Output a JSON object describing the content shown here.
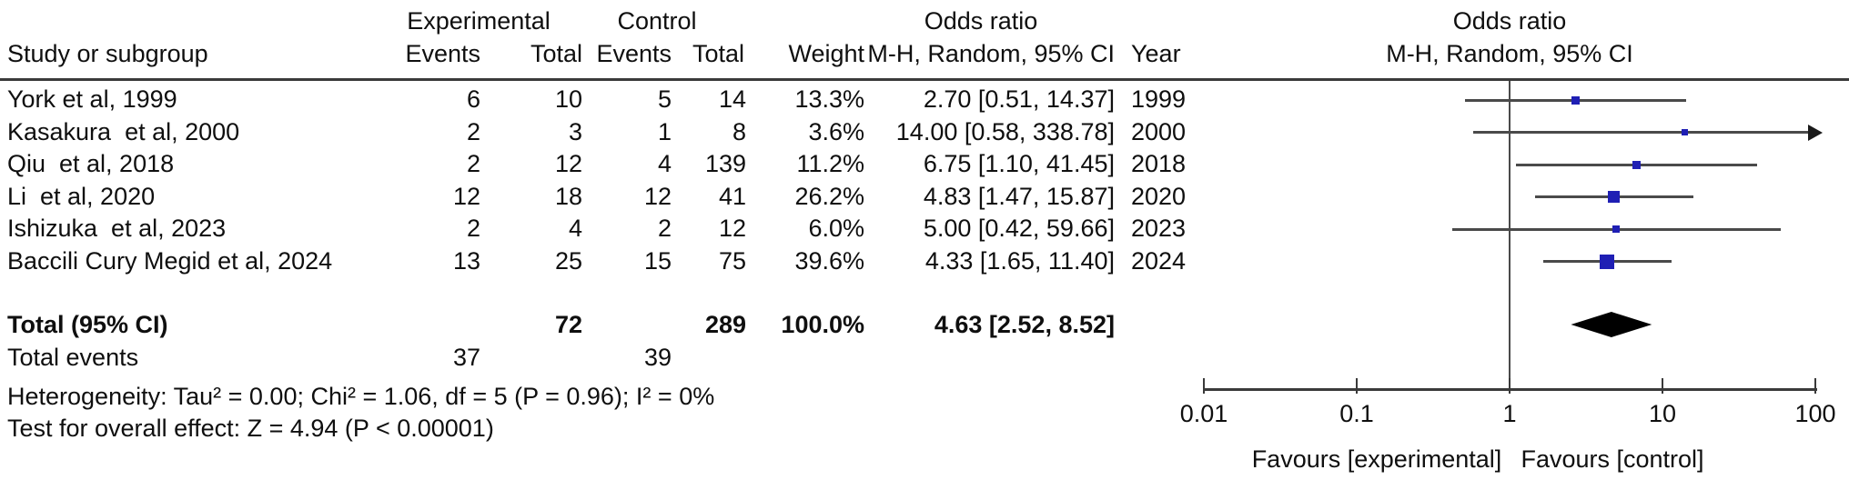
{
  "colors": {
    "marker_blue": "#1f1fb4",
    "ci_line_gray": "#4a4a4a",
    "diamond_black": "#000000",
    "text": "#0f0f0f"
  },
  "header": {
    "group_experimental": "Experimental",
    "group_control": "Control",
    "study_col": "Study or subgroup",
    "events_col": "Events",
    "total_col": "Total",
    "weight_col": "Weight",
    "or_title": "Odds ratio",
    "or_subtitle": "M-H, Random, 95% CI",
    "plot_title": "Odds ratio",
    "plot_subtitle": "M-H, Random, 95% CI",
    "year_col": "Year"
  },
  "chart_data": {
    "type": "forest",
    "scale": "log10",
    "effect_measure": "Odds ratio (M-H, Random, 95% CI)",
    "null_line": 1,
    "axis_ticks": [
      0.01,
      0.1,
      1,
      10,
      100
    ],
    "axis_tick_labels": [
      "0.01",
      "0.1",
      "1",
      "10",
      "100"
    ],
    "axis_clip_max": 100,
    "favours_left": "Favours [experimental]",
    "favours_right": "Favours [control]",
    "studies": [
      {
        "name": "York et al, 1999",
        "exp_events": "6",
        "exp_total": "10",
        "ctrl_events": "5",
        "ctrl_total": "14",
        "weight_pct": 13.3,
        "weight_text": "13.3%",
        "or": 2.7,
        "ci_low": 0.51,
        "ci_high": 14.37,
        "or_text": "2.70 [0.51, 14.37]",
        "year": "1999"
      },
      {
        "name": "Kasakura  et al, 2000",
        "exp_events": "2",
        "exp_total": "3",
        "ctrl_events": "1",
        "ctrl_total": "8",
        "weight_pct": 3.6,
        "weight_text": "3.6%",
        "or": 14.0,
        "ci_low": 0.58,
        "ci_high": 338.78,
        "or_text": "14.00 [0.58, 338.78]",
        "year": "2000"
      },
      {
        "name": "Qiu  et al, 2018",
        "exp_events": "2",
        "exp_total": "12",
        "ctrl_events": "4",
        "ctrl_total": "139",
        "weight_pct": 11.2,
        "weight_text": "11.2%",
        "or": 6.75,
        "ci_low": 1.1,
        "ci_high": 41.45,
        "or_text": "6.75 [1.10, 41.45]",
        "year": "2018"
      },
      {
        "name": "Li  et al, 2020",
        "exp_events": "12",
        "exp_total": "18",
        "ctrl_events": "12",
        "ctrl_total": "41",
        "weight_pct": 26.2,
        "weight_text": "26.2%",
        "or": 4.83,
        "ci_low": 1.47,
        "ci_high": 15.87,
        "or_text": "4.83 [1.47, 15.87]",
        "year": "2020"
      },
      {
        "name": "Ishizuka  et al, 2023",
        "exp_events": "2",
        "exp_total": "4",
        "ctrl_events": "2",
        "ctrl_total": "12",
        "weight_pct": 6.0,
        "weight_text": "6.0%",
        "or": 5.0,
        "ci_low": 0.42,
        "ci_high": 59.66,
        "or_text": "5.00 [0.42, 59.66]",
        "year": "2023"
      },
      {
        "name": "Baccili Cury Megid et al, 2024",
        "exp_events": "13",
        "exp_total": "25",
        "ctrl_events": "15",
        "ctrl_total": "75",
        "weight_pct": 39.6,
        "weight_text": "39.6%",
        "or": 4.33,
        "ci_low": 1.65,
        "ci_high": 11.4,
        "or_text": "4.33 [1.65, 11.40]",
        "year": "2024"
      }
    ],
    "total": {
      "label": "Total (95% CI)",
      "exp_total": "72",
      "ctrl_total": "289",
      "weight_text": "100.0%",
      "or": 4.63,
      "ci_low": 2.52,
      "ci_high": 8.52,
      "or_text": "4.63 [2.52, 8.52]"
    },
    "total_events": {
      "label": "Total events",
      "exp": "37",
      "ctrl": "39"
    },
    "heterogeneity": "Heterogeneity: Tau² = 0.00; Chi² = 1.06, df = 5 (P = 0.96); I² = 0%",
    "overall_effect": "Test for overall effect: Z = 4.94 (P < 0.00001)"
  }
}
